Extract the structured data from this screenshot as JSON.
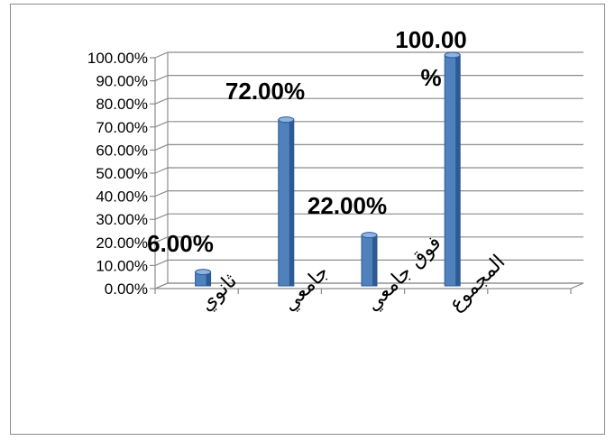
{
  "chart_data": {
    "type": "bar",
    "categories": [
      "ثانوي",
      "جامعي",
      "فوق جامعي",
      "المجموع"
    ],
    "values": [
      6,
      72,
      22,
      100
    ],
    "data_labels": [
      "6.00%",
      "72.00%",
      "22.00%",
      "100.00%"
    ],
    "y_tick_labels": [
      "0.00%",
      "10.00%",
      "20.00%",
      "30.00%",
      "40.00%",
      "50.00%",
      "60.00%",
      "70.00%",
      "80.00%",
      "90.00%",
      "100.00%"
    ],
    "ylim": [
      0,
      100
    ],
    "grid": true,
    "legend": "none",
    "title": "",
    "xlabel": "",
    "ylabel": "",
    "colors": {
      "bar_front": "#4f81bd",
      "bar_side": "#2c5a92",
      "bar_top": "#8db3e2",
      "grid": "#8c8c8c",
      "frame": "#8c8c8c"
    }
  }
}
